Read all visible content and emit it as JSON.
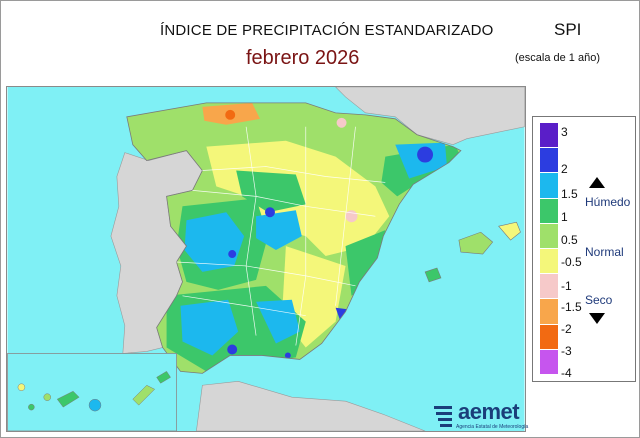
{
  "header": {
    "title": "ÍNDICE DE PRECIPITACIÓN ESTANDARIZADO",
    "period": "febrero  2026",
    "index_name": "SPI",
    "scale_note": "(escala de 1 año)"
  },
  "legend": {
    "ticks": [
      "3",
      "2",
      "1.5",
      "1",
      "0.5",
      "-0.5",
      "-1",
      "-1.5",
      "-2",
      "-3",
      "-4"
    ],
    "colors": [
      "#5a1ec8",
      "#2c3de0",
      "#1cb8ee",
      "#3cc76a",
      "#9fe06a",
      "#f4f77a",
      "#f6c9c9",
      "#f8a64b",
      "#f26a12",
      "#ee1b16",
      "#c655ee"
    ],
    "categories": {
      "wet": "Húmedo",
      "normal": "Normal",
      "dry": "Seco"
    }
  },
  "map": {
    "sea_color": "#7ff0f5",
    "foreign_land_color": "#d6d6d6"
  },
  "logo": {
    "word": "aemet",
    "subtitle": "Agencia Estatal de Meteorología"
  }
}
